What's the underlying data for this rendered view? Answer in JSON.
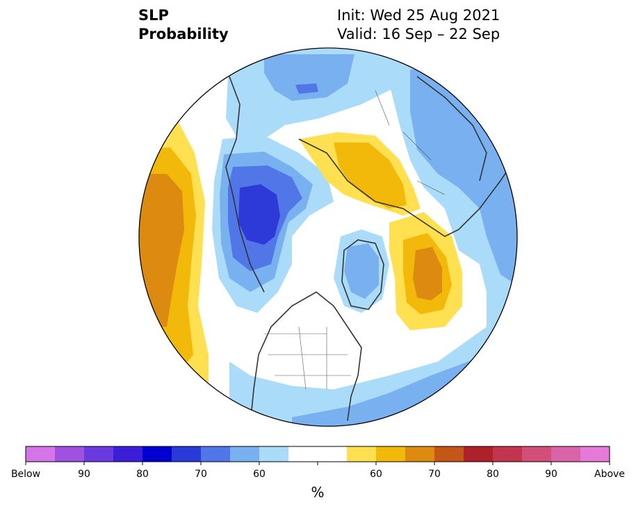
{
  "header": {
    "variable": "SLP",
    "product": "Probability",
    "init": "Init: Wed 25 Aug 2021",
    "valid": "Valid: 16 Sep – 22 Sep"
  },
  "map": {
    "projection": "north-polar-stereographic",
    "background": "#ffffff",
    "coastline_color": "#333333",
    "regions": [
      {
        "name": "north-pacific-warm",
        "level": "above-70",
        "color": "#dd8b10"
      },
      {
        "name": "alaska-bering-cool",
        "level": "below-70",
        "color": "#2e3ad7"
      },
      {
        "name": "north-atlantic-warm",
        "level": "above-70",
        "color": "#dd8b10"
      },
      {
        "name": "siberia-warm",
        "level": "above-60",
        "color": "#f2b80a"
      },
      {
        "name": "greenland-cool",
        "level": "below-60",
        "color": "#78b0f0"
      },
      {
        "name": "barents-cool",
        "level": "below-60",
        "color": "#78b0f0"
      }
    ]
  },
  "colorbar": {
    "colors": [
      "#d575e8",
      "#a051e0",
      "#6a3ae0",
      "#3c1ed8",
      "#0000d0",
      "#2a3ad8",
      "#5076e8",
      "#78b0f0",
      "#aadcfa",
      "#ffffff",
      "#ffffff",
      "#fee050",
      "#f2b80a",
      "#dd8b10",
      "#c45617",
      "#ae2128",
      "#c3344e",
      "#d0507a",
      "#da64a8",
      "#e57ad8"
    ],
    "labels": [
      "Below",
      "90",
      "80",
      "70",
      "60",
      "60",
      "70",
      "80",
      "90",
      "Above"
    ],
    "unit": "%"
  }
}
